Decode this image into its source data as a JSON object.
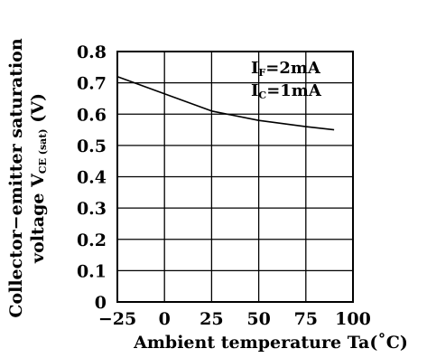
{
  "chart_data": {
    "type": "line",
    "title": "",
    "xlabel": "Ambient temperature Ta(˚C)",
    "ylabel": {
      "line1": "Collector−emitter saturation",
      "line2_prefix": "voltage  V",
      "line2_sub": "CE (sat)",
      "line2_suffix": " (V)"
    },
    "xlim": [
      -25,
      100
    ],
    "ylim": [
      0,
      0.8
    ],
    "x_ticks": [
      "−25",
      "0",
      "25",
      "50",
      "75",
      "100"
    ],
    "x_tick_values": [
      -25,
      0,
      25,
      50,
      75,
      100
    ],
    "y_ticks": [
      "0",
      "0.1",
      "0.2",
      "0.3",
      "0.4",
      "0.5",
      "0.6",
      "0.7",
      "0.8"
    ],
    "y_tick_values": [
      0,
      0.1,
      0.2,
      0.3,
      0.4,
      0.5,
      0.6,
      0.7,
      0.8
    ],
    "grid": true,
    "annotations": [
      {
        "prefix": "I",
        "sub": "F",
        "suffix": "=2mA"
      },
      {
        "prefix": "I",
        "sub": "C",
        "suffix": "=1mA"
      }
    ],
    "series": [
      {
        "x": [
          -25,
          0,
          25,
          50,
          75,
          90
        ],
        "y": [
          0.72,
          0.665,
          0.61,
          0.58,
          0.56,
          0.55
        ]
      }
    ],
    "colors": {
      "line": "#000000",
      "grid": "#000000"
    }
  }
}
